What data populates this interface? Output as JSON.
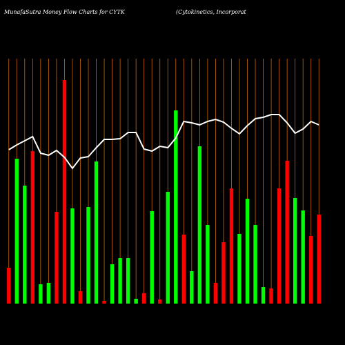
{
  "chart_data": {
    "type": "bar",
    "title": "MunafaSutra  Money Flow  Charts for CYTK",
    "subtitle": "(Cytokinetics,  Incorporat",
    "categories": [
      null,
      null,
      null,
      null,
      null,
      null,
      null,
      null,
      null,
      null,
      null,
      null,
      null,
      null,
      null,
      null,
      null,
      null,
      null,
      null,
      null,
      null,
      null,
      null,
      null,
      null,
      null,
      null,
      null,
      null,
      null,
      null,
      null,
      null,
      null,
      null,
      null,
      null,
      null,
      null
    ],
    "values": [
      52,
      210,
      171,
      221,
      28,
      30,
      133,
      324,
      138,
      18,
      140,
      206,
      4,
      57,
      66,
      66,
      7,
      15,
      134,
      6,
      162,
      280,
      100,
      47,
      228,
      114,
      30,
      89,
      167,
      101,
      152,
      114,
      24,
      22,
      167,
      207,
      153,
      135,
      98,
      129
    ],
    "colors": [
      "#ff0000",
      "#00ff00",
      "#00ff00",
      "#ff0000",
      "#00ff00",
      "#00ff00",
      "#ff0000",
      "#ff0000",
      "#00ff00",
      "#ff0000",
      "#00ff00",
      "#00ff00",
      "#ff0000",
      "#00ff00",
      "#00ff00",
      "#00ff00",
      "#00ff00",
      "#ff0000",
      "#00ff00",
      "#ff0000",
      "#00ff00",
      "#00ff00",
      "#ff0000",
      "#00ff00",
      "#00ff00",
      "#00ff00",
      "#ff0000",
      "#ff0000",
      "#ff0000",
      "#00ff00",
      "#00ff00",
      "#00ff00",
      "#00ff00",
      "#ff0000",
      "#ff0000",
      "#ff0000",
      "#00ff00",
      "#00ff00",
      "#ff0000",
      "#ff0000"
    ],
    "line": {
      "color": "#ffffff",
      "values": [
        223,
        230,
        236,
        242,
        218,
        215,
        222,
        212,
        196,
        211,
        213,
        226,
        238,
        238,
        239,
        248,
        248,
        224,
        221,
        228,
        226,
        240,
        264,
        262,
        259,
        264,
        267,
        263,
        254,
        246,
        258,
        268,
        270,
        274,
        274,
        262,
        247,
        253,
        264,
        259
      ]
    },
    "ylim": [
      0,
      340
    ],
    "grid": true,
    "grid_color": "#cc6600"
  }
}
